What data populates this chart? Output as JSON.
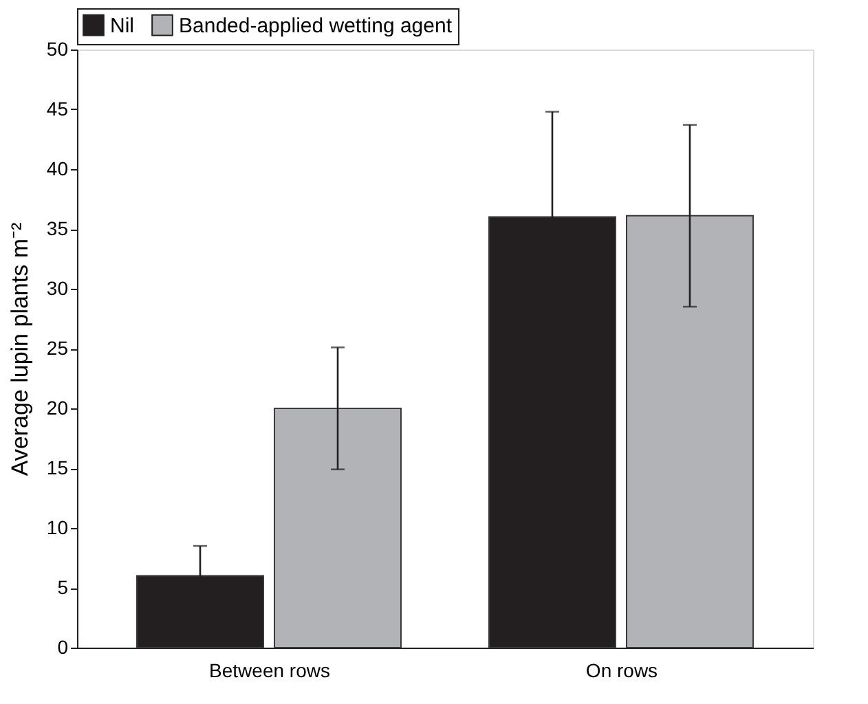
{
  "chart_data": {
    "type": "bar",
    "ylabel": "Average lupin plants m⁻²",
    "categories": [
      "Between rows",
      "On rows"
    ],
    "series": [
      {
        "name": "Nil",
        "color": "#231f20",
        "values": [
          6.0,
          36.0
        ],
        "errors": [
          2.5,
          8.8
        ]
      },
      {
        "name": "Banded-applied wetting agent",
        "color": "#b2b3b6",
        "values": [
          20.0,
          36.1
        ],
        "errors": [
          5.1,
          7.6
        ]
      }
    ],
    "ylim": [
      0,
      50
    ],
    "yticks": [
      0,
      5,
      10,
      15,
      20,
      25,
      30,
      35,
      40,
      45,
      50
    ],
    "grid": false,
    "legend": "top"
  }
}
